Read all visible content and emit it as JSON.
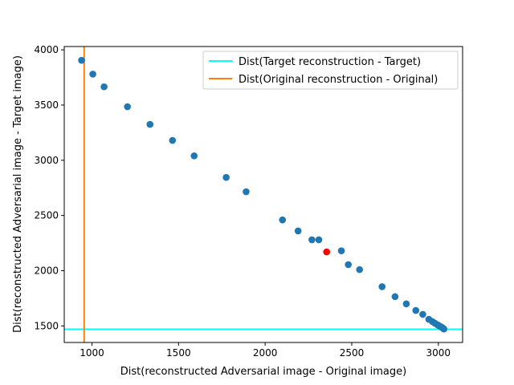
{
  "chart_data": {
    "type": "scatter",
    "title": "",
    "xlabel": "Dist(reconstructed Adversarial image - Original image)",
    "ylabel": "Dist(reconstructed Adversarial image - Target image)",
    "xlim": [
      840,
      3140
    ],
    "ylim": [
      1350,
      4030
    ],
    "xticks": [
      1000,
      1500,
      2000,
      2500,
      3000
    ],
    "yticks": [
      1500,
      2000,
      2500,
      3000,
      3500,
      4000
    ],
    "grid": false,
    "legend_position": "top-right",
    "series": [
      {
        "color": "#1f77b4",
        "points": [
          [
            940,
            3905
          ],
          [
            1005,
            3780
          ],
          [
            1070,
            3665
          ],
          [
            1205,
            3485
          ],
          [
            1335,
            3325
          ],
          [
            1465,
            3180
          ],
          [
            1590,
            3040
          ],
          [
            1775,
            2845
          ],
          [
            1890,
            2715
          ],
          [
            2100,
            2460
          ],
          [
            2190,
            2360
          ],
          [
            2270,
            2280
          ],
          [
            2310,
            2280
          ],
          [
            2440,
            2180
          ],
          [
            2480,
            2055
          ],
          [
            2545,
            2010
          ],
          [
            2675,
            1855
          ],
          [
            2750,
            1765
          ],
          [
            2815,
            1700
          ],
          [
            2870,
            1640
          ],
          [
            2910,
            1605
          ],
          [
            2945,
            1560
          ],
          [
            2965,
            1540
          ],
          [
            2980,
            1525
          ],
          [
            2995,
            1510
          ],
          [
            3005,
            1500
          ],
          [
            3015,
            1492
          ],
          [
            3022,
            1485
          ],
          [
            3028,
            1478
          ],
          [
            3032,
            1472
          ]
        ]
      },
      {
        "color": "#ff0000",
        "points": [
          [
            2355,
            2170
          ]
        ]
      }
    ],
    "reference_lines": [
      {
        "orientation": "horizontal",
        "value": 1470,
        "color": "#00ffff",
        "label": "Dist(Target reconstruction - Target)"
      },
      {
        "orientation": "vertical",
        "value": 955,
        "color": "#ff7f0e",
        "label": "Dist(Original reconstruction - Original)"
      }
    ]
  }
}
